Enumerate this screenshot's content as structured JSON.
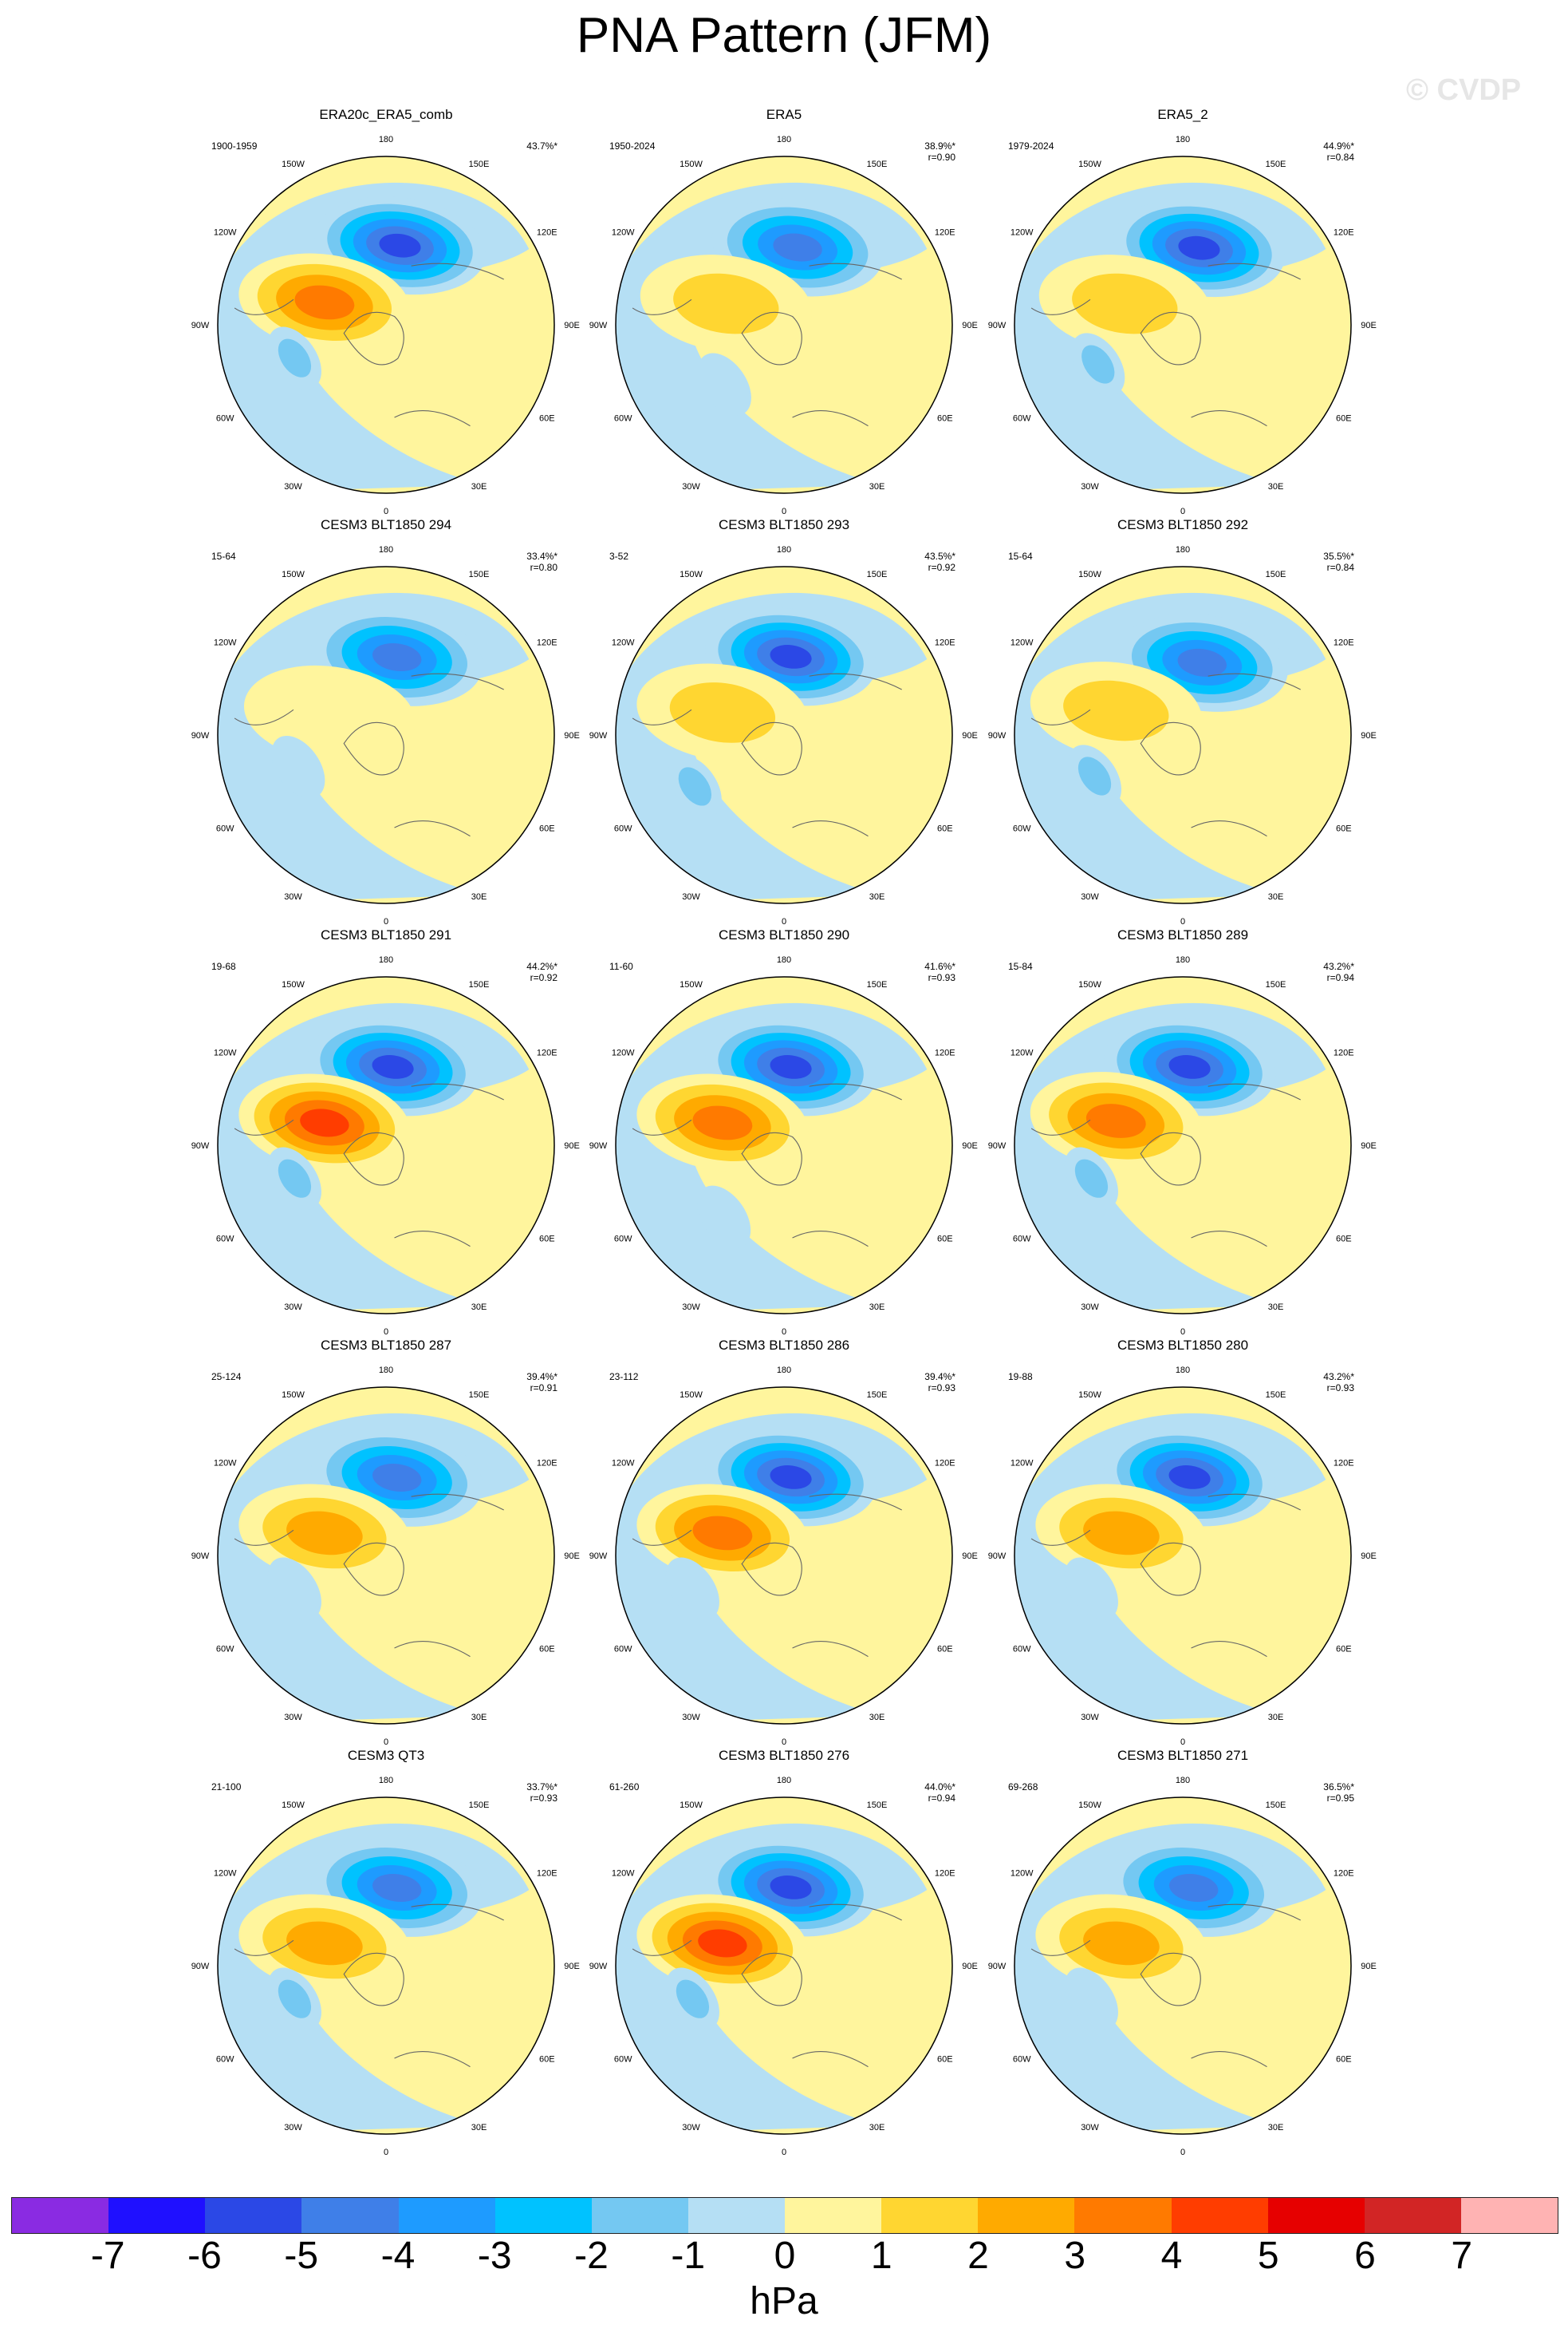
{
  "title": "PNA Pattern (JFM)",
  "watermark": "© CVDP",
  "direction_labels": [
    "180",
    "150E",
    "120E",
    "90E",
    "60E",
    "30E",
    "0",
    "30W",
    "60W",
    "90W",
    "120W",
    "150W"
  ],
  "panels": [
    {
      "title": "ERA20c_ERA5_comb",
      "years": "1900-1959",
      "pct": "43.7%*",
      "r": "",
      "centers": [
        {
          "name": "Aleutian low",
          "lon": 170,
          "lat": 47,
          "value": -5.5
        },
        {
          "name": "Canada high",
          "lon": -110,
          "lat": 55,
          "value": 3.5
        },
        {
          "name": "Atlantic low",
          "lon": -70,
          "lat": 38,
          "value": -1.5
        }
      ]
    },
    {
      "title": "ERA5",
      "years": "1950-2024",
      "pct": "38.9%*",
      "r": "r=0.90",
      "centers": [
        {
          "name": "Aleutian low",
          "lon": 170,
          "lat": 48,
          "value": -5.0
        },
        {
          "name": "Canada high",
          "lon": -110,
          "lat": 57,
          "value": 1.5
        },
        {
          "name": "Atlantic low",
          "lon": -45,
          "lat": 45,
          "value": -1.0
        }
      ]
    },
    {
      "title": "ERA5_2",
      "years": "1979-2024",
      "pct": "44.9%*",
      "r": "r=0.84",
      "centers": [
        {
          "name": "Aleutian low",
          "lon": 168,
          "lat": 48,
          "value": -6.0
        },
        {
          "name": "Canada high",
          "lon": -110,
          "lat": 57,
          "value": 1.5
        },
        {
          "name": "Atlantic low",
          "lon": -65,
          "lat": 40,
          "value": -2.0
        }
      ]
    },
    {
      "title": "CESM3 BLT1850 294",
      "years": "15-64",
      "pct": "33.4%*",
      "r": "r=0.80",
      "centers": [
        {
          "name": "Aleutian low",
          "lon": 172,
          "lat": 48,
          "value": -5.0
        },
        {
          "name": "Canada high",
          "lon": -110,
          "lat": 58,
          "value": 1.0
        },
        {
          "name": "Atlantic low",
          "lon": -70,
          "lat": 40,
          "value": -1.0
        }
      ]
    },
    {
      "title": "CESM3 BLT1850 293",
      "years": "3-52",
      "pct": "43.5%*",
      "r": "r=0.92",
      "centers": [
        {
          "name": "Aleutian low",
          "lon": 175,
          "lat": 48,
          "value": -6.0
        },
        {
          "name": "Canada high",
          "lon": -110,
          "lat": 55,
          "value": 2.0
        },
        {
          "name": "Atlantic low",
          "lon": -60,
          "lat": 35,
          "value": -1.5
        }
      ]
    },
    {
      "title": "CESM3 BLT1850 292",
      "years": "15-64",
      "pct": "35.5%*",
      "r": "r=0.84",
      "centers": [
        {
          "name": "Aleutian low",
          "lon": 165,
          "lat": 50,
          "value": -4.5
        },
        {
          "name": "Canada high",
          "lon": -110,
          "lat": 52,
          "value": 2.0
        },
        {
          "name": "Atlantic low",
          "lon": -65,
          "lat": 38,
          "value": -2.0
        }
      ]
    },
    {
      "title": "CESM3 BLT1850 291",
      "years": "19-68",
      "pct": "44.2%*",
      "r": "r=0.92",
      "centers": [
        {
          "name": "Aleutian low",
          "lon": 175,
          "lat": 48,
          "value": -5.5
        },
        {
          "name": "Canada high",
          "lon": -110,
          "lat": 55,
          "value": 4.5
        },
        {
          "name": "Atlantic low",
          "lon": -70,
          "lat": 38,
          "value": -1.5
        }
      ]
    },
    {
      "title": "CESM3 BLT1850 290",
      "years": "11-60",
      "pct": "41.6%*",
      "r": "r=0.93",
      "centers": [
        {
          "name": "Aleutian low",
          "lon": 175,
          "lat": 48,
          "value": -5.5
        },
        {
          "name": "Canada high",
          "lon": -110,
          "lat": 55,
          "value": 3.5
        },
        {
          "name": "Atlantic low",
          "lon": -40,
          "lat": 40,
          "value": -1.0
        }
      ]
    },
    {
      "title": "CESM3 BLT1850 289",
      "years": "15-84",
      "pct": "43.2%*",
      "r": "r=0.94",
      "centers": [
        {
          "name": "Aleutian low",
          "lon": 175,
          "lat": 48,
          "value": -6.0
        },
        {
          "name": "Canada high",
          "lon": -110,
          "lat": 52,
          "value": 3.5
        },
        {
          "name": "Atlantic low",
          "lon": -70,
          "lat": 38,
          "value": -2.0
        }
      ]
    },
    {
      "title": "CESM3 BLT1850 287",
      "years": "25-124",
      "pct": "39.4%*",
      "r": "r=0.91",
      "centers": [
        {
          "name": "Aleutian low",
          "lon": 172,
          "lat": 48,
          "value": -5.0
        },
        {
          "name": "Canada high",
          "lon": -110,
          "lat": 55,
          "value": 3.0
        },
        {
          "name": "Atlantic low",
          "lon": -70,
          "lat": 38,
          "value": -1.0
        }
      ]
    },
    {
      "title": "CESM3 BLT1850 286",
      "years": "23-112",
      "pct": "39.4%*",
      "r": "r=0.93",
      "centers": [
        {
          "name": "Aleutian low",
          "lon": 175,
          "lat": 48,
          "value": -5.5
        },
        {
          "name": "Canada high",
          "lon": -110,
          "lat": 55,
          "value": 3.5
        },
        {
          "name": "Atlantic low",
          "lon": -70,
          "lat": 38,
          "value": -1.0
        }
      ]
    },
    {
      "title": "CESM3 BLT1850 280",
      "years": "19-88",
      "pct": "43.2%*",
      "r": "r=0.93",
      "centers": [
        {
          "name": "Aleutian low",
          "lon": 175,
          "lat": 48,
          "value": -6.0
        },
        {
          "name": "Canada high",
          "lon": -110,
          "lat": 55,
          "value": 2.5
        },
        {
          "name": "Atlantic low",
          "lon": -70,
          "lat": 38,
          "value": -1.0
        }
      ]
    },
    {
      "title": "CESM3 QT3",
      "years": "21-100",
      "pct": "33.7%*",
      "r": "r=0.93",
      "centers": [
        {
          "name": "Aleutian low",
          "lon": 172,
          "lat": 48,
          "value": -5.0
        },
        {
          "name": "Canada high",
          "lon": -110,
          "lat": 55,
          "value": 2.5
        },
        {
          "name": "Atlantic low",
          "lon": -70,
          "lat": 38,
          "value": -1.5
        }
      ]
    },
    {
      "title": "CESM3 BLT1850 276",
      "years": "61-260",
      "pct": "44.0%*",
      "r": "r=0.94",
      "centers": [
        {
          "name": "Aleutian low",
          "lon": 175,
          "lat": 48,
          "value": -5.5
        },
        {
          "name": "Canada high",
          "lon": -110,
          "lat": 55,
          "value": 4.5
        },
        {
          "name": "Atlantic low",
          "lon": -70,
          "lat": 38,
          "value": -2.0
        }
      ]
    },
    {
      "title": "CESM3 BLT1850 271",
      "years": "69-268",
      "pct": "36.5%*",
      "r": "r=0.95",
      "centers": [
        {
          "name": "Aleutian low",
          "lon": 172,
          "lat": 48,
          "value": -5.0
        },
        {
          "name": "Canada high",
          "lon": -110,
          "lat": 55,
          "value": 2.5
        },
        {
          "name": "Atlantic low",
          "lon": -70,
          "lat": 38,
          "value": -1.0
        }
      ]
    }
  ],
  "colorbar": {
    "colors": [
      "#8a2be2",
      "#1f10ff",
      "#2b48e6",
      "#3f7fe8",
      "#1e9bff",
      "#00c2ff",
      "#74c8f2",
      "#b5dff4",
      "#fff59d",
      "#ffd631",
      "#ffaa00",
      "#ff7a00",
      "#ff3d00",
      "#e60000",
      "#d22525",
      "#ffb3b3"
    ],
    "ticks": [
      "-7",
      "-6",
      "-5",
      "-4",
      "-3",
      "-2",
      "-1",
      "0",
      "1",
      "2",
      "3",
      "4",
      "5",
      "6",
      "7"
    ],
    "units": "hPa"
  }
}
